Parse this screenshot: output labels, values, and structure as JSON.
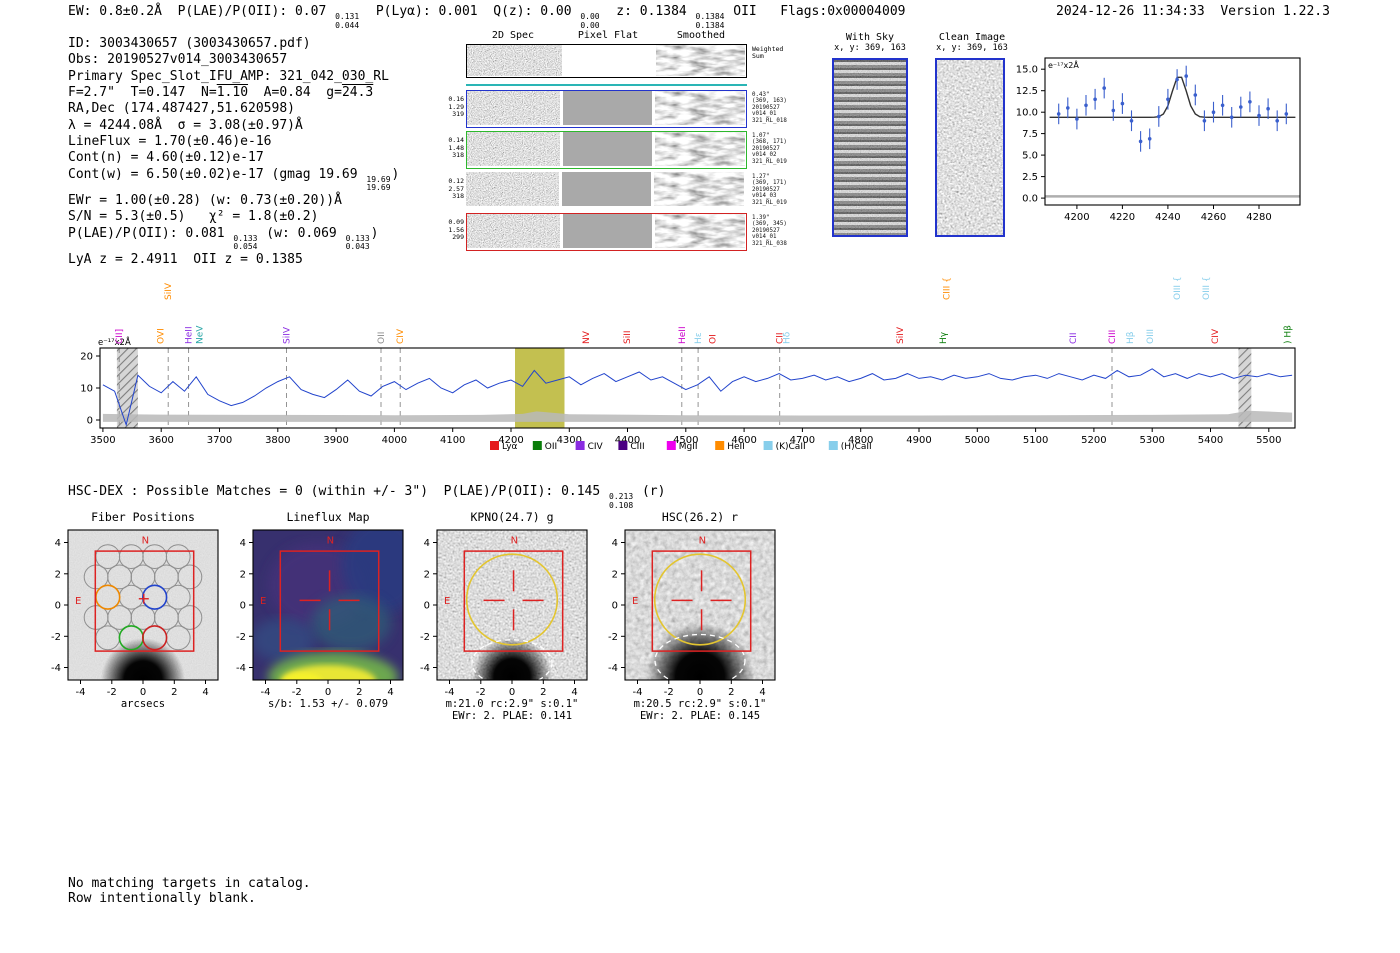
{
  "meta": {
    "timestamp_version": "2024-12-26 11:34:33  Version 1.22.3"
  },
  "header": {
    "segments": [
      {
        "t": "EW: 0.8±0.2Å  P(LAE)/P(OII): 0.07 "
      },
      {
        "f": [
          "0.131",
          "0.044"
        ]
      },
      {
        "t": "  P(Lyα): 0.001  Q(z): 0.00 "
      },
      {
        "f": [
          "0.00",
          "0.00"
        ]
      },
      {
        "t": "  z: 0.1384 "
      },
      {
        "f": [
          "0.1384",
          "0.1384"
        ]
      },
      {
        "t": " OII   Flags:0x00004009"
      }
    ]
  },
  "info": {
    "lines": [
      [
        {
          "t": "ID: 3003430657 (3003430657.pdf)"
        }
      ],
      [
        {
          "t": "Obs: 20190527v014_3003430657"
        }
      ],
      [
        {
          "t": "Primary Spec_Slot_IFU_AMP: 321_042_030_RL"
        }
      ],
      [
        {
          "t": "F=2.7\"  T=0.147  N="
        },
        {
          "t": "1.10",
          "ov": true
        },
        {
          "t": "  A=0.84  g="
        },
        {
          "t": "24.3",
          "ov": true
        }
      ],
      [
        {
          "t": "RA,Dec (174.487427,51.620598)"
        }
      ],
      [
        {
          "t": "λ = 4244.08Å  σ = 3.08(±0.97)Å"
        }
      ],
      [
        {
          "t": "LineFlux = 1.70(±0.46)e-16"
        }
      ],
      [
        {
          "t": "Cont(n) = 4.60(±0.12)e-17"
        }
      ],
      [
        {
          "t": "Cont(w) = 6.50(±0.02)e-17 (gmag 19.69 "
        },
        {
          "f": [
            "19.69",
            "19.69"
          ]
        },
        {
          "t": ")"
        }
      ],
      [
        {
          "t": "EWr = 1.00(±0.28) (w: 0.73(±0.20))Å"
        }
      ],
      [
        {
          "t": "S/N = 5.3(±0.5)   χ² = 1.8(±0.2)"
        }
      ],
      [
        {
          "t": "P(LAE)/P(OII): 0.081 "
        },
        {
          "f": [
            "0.133",
            "0.054"
          ]
        },
        {
          "t": " (w: 0.069 "
        },
        {
          "f": [
            "0.133",
            "0.043"
          ]
        },
        {
          "t": ")"
        }
      ],
      [
        {
          "t": "LyA z = 2.4911  OII z = 0.1385"
        }
      ]
    ]
  },
  "spec2d": {
    "col_titles": [
      "2D Spec",
      "Pixel Flat",
      "Smoothed"
    ],
    "weighted_sum": [
      "Weighted",
      "Sum"
    ],
    "rows": [
      {
        "left": [
          "0.16",
          "1.29",
          "319"
        ],
        "border": "#2233cc",
        "right": [
          "0.43\"",
          "(369, 163)",
          "20190527",
          "v014_01",
          "321_RL_018"
        ]
      },
      {
        "left": [
          "0.14",
          "1.48",
          "318"
        ],
        "border": "#2db82d",
        "right": [
          "1.07\"",
          "(368, 171)",
          "20190527",
          "v014_02",
          "321_RL_019"
        ]
      },
      {
        "left": [
          "0.12",
          "2.57",
          "318"
        ],
        "border": null,
        "right": [
          "1.27\"",
          "(369, 171)",
          "20190527",
          "v014_03",
          "321_RL_019"
        ]
      },
      {
        "left": [
          "0.09",
          "1.56",
          "299"
        ],
        "border": "#d22222",
        "right": [
          "1.39\"",
          "(369, 345)",
          "20190527",
          "v014_01",
          "321_RL_038"
        ]
      }
    ]
  },
  "with_sky": {
    "title": "With Sky",
    "coords": "x, y: 369, 163"
  },
  "clean_image": {
    "title": "Clean Image",
    "coords": "x, y: 369, 163"
  },
  "chart_data": [
    {
      "type": "line",
      "name": "full-spectrum",
      "units_label": "e⁻¹⁷x2Å",
      "xlim": [
        3495,
        5545
      ],
      "ylim": [
        -2.5,
        22.5
      ],
      "xticks": [
        3500,
        3600,
        3700,
        3800,
        3900,
        4000,
        4100,
        4200,
        4300,
        4400,
        4500,
        4600,
        4700,
        4800,
        4900,
        5000,
        5100,
        5200,
        5300,
        5400,
        5500
      ],
      "yticks": [
        0,
        10,
        20
      ],
      "line_color": "#2244cc",
      "highlight_band": [
        4207,
        4292
      ],
      "highlight_color": "#b8b531",
      "hatched_bands": [
        [
          3524,
          3560
        ],
        [
          5448,
          5470
        ]
      ],
      "dashed_lines": [
        3528,
        3612,
        3647,
        3815,
        3977,
        4010,
        4493,
        4521,
        4661,
        5231
      ],
      "top_labels": [
        {
          "t": "CII]",
          "wl": 3528,
          "c": "#cc00cc"
        },
        {
          "t": "OVI",
          "wl": 3599,
          "c": "#ff8c00"
        },
        {
          "t": "SiIV",
          "wl": 3612,
          "c": "#ff8c00",
          "tall": true
        },
        {
          "t": "HeII",
          "wl": 3647,
          "c": "#8a2be2"
        },
        {
          "t": "NeV",
          "wl": 3666,
          "c": "#2aa7a7"
        },
        {
          "t": "SiIV",
          "wl": 3815,
          "c": "#8a2be2"
        },
        {
          "t": "OII",
          "wl": 3977,
          "c": "#8c8c8c"
        },
        {
          "t": "CIV",
          "wl": 4010,
          "c": "#ff8c00"
        },
        {
          "t": "NV",
          "wl": 4329,
          "c": "#e41a1c"
        },
        {
          "t": "SiII",
          "wl": 4399,
          "c": "#e41a1c"
        },
        {
          "t": "HeII",
          "wl": 4493,
          "c": "#cc00cc"
        },
        {
          "t": "Hε",
          "wl": 4521,
          "c": "#87ceeb"
        },
        {
          "t": "OI",
          "wl": 4546,
          "c": "#e41a1c"
        },
        {
          "t": "CII",
          "wl": 4661,
          "c": "#e41a1c"
        },
        {
          "t": "Hδ",
          "wl": 4673,
          "c": "#87ceeb"
        },
        {
          "t": "SiIV",
          "wl": 4867,
          "c": "#e41a1c"
        },
        {
          "t": "Hγ",
          "wl": 4941,
          "c": "#0a7d0a"
        },
        {
          "t": "CIII {",
          "wl": 4947,
          "c": "#ff8c00",
          "tall": true
        },
        {
          "t": "CII",
          "wl": 5164,
          "c": "#8a2be2"
        },
        {
          "t": "CIII",
          "wl": 5231,
          "c": "#cc00cc"
        },
        {
          "t": "Hβ",
          "wl": 5262,
          "c": "#87ceeb"
        },
        {
          "t": "OIII",
          "wl": 5296,
          "c": "#87ceeb"
        },
        {
          "t": "OIII {",
          "wl": 5343,
          "c": "#87ceeb",
          "tall": true
        },
        {
          "t": "OIII {",
          "wl": 5392,
          "c": "#87ceeb",
          "tall": true
        },
        {
          "t": "CIV",
          "wl": 5408,
          "c": "#e41a1c"
        },
        {
          "t": ") Hβ",
          "wl": 5532,
          "c": "#0a7d0a"
        }
      ],
      "legend": [
        {
          "label": "Lyα",
          "color": "#e41a1c"
        },
        {
          "label": "OII",
          "color": "#0a7d0a"
        },
        {
          "label": "CIV",
          "color": "#8a2be2"
        },
        {
          "label": "CIII",
          "color": "#4b0082"
        },
        {
          "label": "MgII",
          "color": "#ee00ee"
        },
        {
          "label": "HeII",
          "color": "#ff8c00"
        },
        {
          "label": "(K)CaII",
          "color": "#87ceeb"
        },
        {
          "label": "(H)CaII",
          "color": "#87ceeb"
        }
      ],
      "spectrum": {
        "x_start": 3500,
        "x_step": 20,
        "y": [
          11,
          9,
          -1.5,
          14,
          10.5,
          8.5,
          12,
          9,
          13.5,
          8,
          6,
          4.5,
          5.5,
          7.5,
          10,
          12,
          13.5,
          9.5,
          8,
          7,
          9.5,
          12.5,
          9,
          7.5,
          10.5,
          12,
          9.5,
          11.5,
          13,
          10,
          8.5,
          11,
          12.5,
          10,
          11.5,
          12.5,
          10.5,
          15.5,
          11.5,
          12.5,
          13.5,
          11,
          13,
          14.5,
          12,
          13.5,
          15,
          12.5,
          13.5,
          11.5,
          9.5,
          11,
          13.5,
          9,
          12,
          13.5,
          12,
          13,
          14.5,
          12.5,
          13,
          14,
          12.5,
          13.5,
          12,
          13,
          14.5,
          12.5,
          13,
          14.5,
          13,
          13.5,
          12.5,
          14,
          13,
          13.5,
          14.5,
          13,
          12.5,
          13.5,
          14,
          13,
          14.5,
          13.5,
          12.5,
          14,
          13,
          15.5,
          13.5,
          14,
          16,
          13.5,
          14.5,
          13,
          14.5,
          13.5,
          14.5,
          13,
          14,
          13.5,
          14.5,
          13.5,
          14
        ]
      },
      "error_band_top": [
        [
          3500,
          1.9
        ],
        [
          3600,
          1.7
        ],
        [
          3800,
          1.6
        ],
        [
          4000,
          1.5
        ],
        [
          4150,
          1.6
        ],
        [
          4220,
          1.9
        ],
        [
          4244,
          2.7
        ],
        [
          4300,
          1.8
        ],
        [
          4500,
          1.5
        ],
        [
          4700,
          1.4
        ],
        [
          4900,
          1.4
        ],
        [
          5100,
          1.5
        ],
        [
          5300,
          1.6
        ],
        [
          5430,
          1.8
        ],
        [
          5465,
          2.9
        ],
        [
          5540,
          2.3
        ]
      ],
      "error_band_bottom": -0.6
    },
    {
      "type": "scatter",
      "name": "emission-line-fit",
      "units_label": "e⁻¹⁷x2Å",
      "xlim": [
        4186,
        4298
      ],
      "ylim": [
        -0.8,
        16.3
      ],
      "xticks": [
        4200,
        4220,
        4240,
        4260,
        4280
      ],
      "yticks": [
        0,
        2.5,
        5,
        7.5,
        10,
        12.5,
        15
      ],
      "point_color": "#3a5fcd",
      "x": [
        4192,
        4196,
        4200,
        4204,
        4208,
        4212,
        4216,
        4220,
        4224,
        4228,
        4232,
        4236,
        4240,
        4244,
        4248,
        4252,
        4256,
        4260,
        4264,
        4268,
        4272,
        4276,
        4280,
        4284,
        4288,
        4292
      ],
      "y": [
        9.8,
        10.5,
        9.2,
        10.8,
        11.5,
        12.8,
        10.2,
        11.0,
        9.0,
        6.6,
        6.9,
        9.5,
        11.5,
        13.8,
        14.2,
        12.0,
        9.0,
        10.0,
        10.8,
        9.4,
        10.6,
        11.2,
        9.6,
        10.4,
        9.0,
        9.8
      ],
      "yerr": 1.2,
      "fit": {
        "baseline": 9.4,
        "center": 4245,
        "sigma": 3.1,
        "amplitude": 4.9,
        "color": "#333333"
      }
    }
  ],
  "hsc": {
    "segments": [
      {
        "t": "HSC-DEX : Possible Matches = 0 (within +/- 3\")  P(LAE)/P(OII): 0.145 "
      },
      {
        "f": [
          "0.213",
          "0.108"
        ]
      },
      {
        "t": " (r)"
      }
    ]
  },
  "cutouts": {
    "axis_ticks": [
      -4,
      -2,
      0,
      2,
      4
    ],
    "panels": [
      {
        "title": "Fiber Positions",
        "xlabel": "arcsecs",
        "type": "fibers",
        "compass_n": "N",
        "compass_e": "E",
        "fibers": {
          "radius": 0.76,
          "gray": [
            [
              -2.25,
              3.1
            ],
            [
              -0.75,
              3.1
            ],
            [
              0.75,
              3.1
            ],
            [
              2.25,
              3.1
            ],
            [
              -3.0,
              1.8
            ],
            [
              -1.5,
              1.8
            ],
            [
              0,
              1.8
            ],
            [
              1.5,
              1.8
            ],
            [
              3.0,
              1.8
            ],
            [
              -0.75,
              0.5
            ],
            [
              2.25,
              0.5
            ],
            [
              -3.0,
              -0.8
            ],
            [
              -1.5,
              -0.8
            ],
            [
              0,
              -0.8
            ],
            [
              1.5,
              -0.8
            ],
            [
              3.0,
              -0.8
            ],
            [
              -2.25,
              -2.1
            ],
            [
              2.25,
              -2.1
            ]
          ],
          "blue": [
            0.75,
            0.5
          ],
          "green": [
            -0.75,
            -2.1
          ],
          "red": [
            0.75,
            -2.1
          ],
          "orange": [
            -2.25,
            0.5
          ]
        }
      },
      {
        "title": "Lineflux Map",
        "xlabel": "s/b: 1.53 +/- 0.079",
        "type": "lineflux",
        "compass_n": "N",
        "compass_e": "E"
      },
      {
        "title": "KPNO(24.7) g",
        "xlabel": "m:21.0 rc:2.9\"  s:0.1\"",
        "line2": "EWr: 2. PLAE: 0.141",
        "type": "image",
        "compass_n": "N",
        "compass_e": "E"
      },
      {
        "title": "HSC(26.2) r",
        "xlabel": "m:20.5 rc:2.9\"  s:0.1\"",
        "line2": "EWr: 2. PLAE: 0.145",
        "type": "image",
        "compass_n": "N",
        "compass_e": "E"
      }
    ]
  },
  "footer": {
    "lines": [
      "No matching targets in catalog.",
      "Row intentionally blank."
    ]
  }
}
